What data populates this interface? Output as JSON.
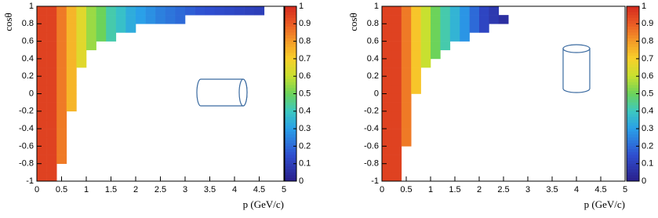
{
  "chart_data": [
    {
      "type": "heatmap",
      "xlabel": "p (GeV/c)",
      "ylabel": "cosθ",
      "colormap": "rainbow",
      "xlim": [
        0,
        5
      ],
      "ylim": [
        -1,
        1
      ],
      "zlim": [
        0,
        1
      ],
      "xticks": [
        0,
        0.5,
        1,
        1.5,
        2,
        2.5,
        3,
        3.5,
        4,
        4.5,
        5
      ],
      "yticks": [
        -1,
        -0.8,
        -0.6,
        -0.4,
        -0.2,
        0,
        0.2,
        0.4,
        0.6,
        0.8,
        1
      ],
      "zticks": [
        0,
        0.1,
        0.2,
        0.3,
        0.4,
        0.5,
        0.6,
        0.7,
        0.8,
        0.9,
        1
      ],
      "x_bins": [
        0,
        0.2,
        0.4,
        0.6,
        0.8,
        1,
        1.2,
        1.4,
        1.6,
        1.8,
        2,
        2.2,
        2.4,
        2.6,
        2.8,
        3,
        3.2,
        3.4,
        3.6,
        3.8,
        4,
        4.2,
        4.4,
        4.6,
        4.8,
        5
      ],
      "y_bins": [
        -1,
        -0.9,
        -0.8,
        -0.7,
        -0.6,
        -0.5,
        -0.4,
        -0.3,
        -0.2,
        -0.1,
        0,
        0.1,
        0.2,
        0.3,
        0.4,
        0.5,
        0.6,
        0.7,
        0.8,
        0.9,
        1
      ],
      "z": [
        [
          0.95,
          0.95,
          null,
          null,
          null,
          null,
          null,
          null,
          null,
          null,
          null,
          null,
          null,
          null,
          null,
          null,
          null,
          null,
          null,
          null,
          null,
          null,
          null,
          null,
          null
        ],
        [
          0.95,
          0.95,
          null,
          null,
          null,
          null,
          null,
          null,
          null,
          null,
          null,
          null,
          null,
          null,
          null,
          null,
          null,
          null,
          null,
          null,
          null,
          null,
          null,
          null,
          null
        ],
        [
          0.95,
          0.95,
          0.85,
          null,
          null,
          null,
          null,
          null,
          null,
          null,
          null,
          null,
          null,
          null,
          null,
          null,
          null,
          null,
          null,
          null,
          null,
          null,
          null,
          null,
          null
        ],
        [
          0.95,
          0.95,
          0.85,
          null,
          null,
          null,
          null,
          null,
          null,
          null,
          null,
          null,
          null,
          null,
          null,
          null,
          null,
          null,
          null,
          null,
          null,
          null,
          null,
          null,
          null
        ],
        [
          0.95,
          0.95,
          0.85,
          null,
          null,
          null,
          null,
          null,
          null,
          null,
          null,
          null,
          null,
          null,
          null,
          null,
          null,
          null,
          null,
          null,
          null,
          null,
          null,
          null,
          null
        ],
        [
          0.95,
          0.95,
          0.85,
          null,
          null,
          null,
          null,
          null,
          null,
          null,
          null,
          null,
          null,
          null,
          null,
          null,
          null,
          null,
          null,
          null,
          null,
          null,
          null,
          null,
          null
        ],
        [
          0.95,
          0.95,
          0.85,
          null,
          null,
          null,
          null,
          null,
          null,
          null,
          null,
          null,
          null,
          null,
          null,
          null,
          null,
          null,
          null,
          null,
          null,
          null,
          null,
          null,
          null
        ],
        [
          0.95,
          0.95,
          0.85,
          null,
          null,
          null,
          null,
          null,
          null,
          null,
          null,
          null,
          null,
          null,
          null,
          null,
          null,
          null,
          null,
          null,
          null,
          null,
          null,
          null,
          null
        ],
        [
          0.95,
          0.95,
          0.85,
          0.75,
          null,
          null,
          null,
          null,
          null,
          null,
          null,
          null,
          null,
          null,
          null,
          null,
          null,
          null,
          null,
          null,
          null,
          null,
          null,
          null,
          null
        ],
        [
          0.95,
          0.95,
          0.85,
          0.75,
          null,
          null,
          null,
          null,
          null,
          null,
          null,
          null,
          null,
          null,
          null,
          null,
          null,
          null,
          null,
          null,
          null,
          null,
          null,
          null,
          null
        ],
        [
          0.95,
          0.95,
          0.85,
          0.75,
          null,
          null,
          null,
          null,
          null,
          null,
          null,
          null,
          null,
          null,
          null,
          null,
          null,
          null,
          null,
          null,
          null,
          null,
          null,
          null,
          null
        ],
        [
          0.95,
          0.95,
          0.85,
          0.75,
          null,
          null,
          null,
          null,
          null,
          null,
          null,
          null,
          null,
          null,
          null,
          null,
          null,
          null,
          null,
          null,
          null,
          null,
          null,
          null,
          null
        ],
        [
          0.95,
          0.95,
          0.85,
          0.75,
          null,
          null,
          null,
          null,
          null,
          null,
          null,
          null,
          null,
          null,
          null,
          null,
          null,
          null,
          null,
          null,
          null,
          null,
          null,
          null,
          null
        ],
        [
          0.95,
          0.95,
          0.85,
          0.75,
          0.65,
          null,
          null,
          null,
          null,
          null,
          null,
          null,
          null,
          null,
          null,
          null,
          null,
          null,
          null,
          null,
          null,
          null,
          null,
          null,
          null
        ],
        [
          0.95,
          0.95,
          0.85,
          0.75,
          0.65,
          null,
          null,
          null,
          null,
          null,
          null,
          null,
          null,
          null,
          null,
          null,
          null,
          null,
          null,
          null,
          null,
          null,
          null,
          null,
          null
        ],
        [
          0.95,
          0.95,
          0.85,
          0.75,
          0.65,
          0.55,
          null,
          null,
          null,
          null,
          null,
          null,
          null,
          null,
          null,
          null,
          null,
          null,
          null,
          null,
          null,
          null,
          null,
          null,
          null
        ],
        [
          0.95,
          0.95,
          0.85,
          0.75,
          0.65,
          0.55,
          0.5,
          0.42,
          null,
          null,
          null,
          null,
          null,
          null,
          null,
          null,
          null,
          null,
          null,
          null,
          null,
          null,
          null,
          null,
          null
        ],
        [
          0.95,
          0.95,
          0.85,
          0.75,
          0.65,
          0.55,
          0.5,
          0.42,
          0.38,
          0.33,
          null,
          null,
          null,
          null,
          null,
          null,
          null,
          null,
          null,
          null,
          null,
          null,
          null,
          null,
          null
        ],
        [
          0.95,
          0.95,
          0.85,
          0.75,
          0.65,
          0.55,
          0.5,
          0.42,
          0.38,
          0.33,
          0.3,
          0.27,
          0.24,
          0.22,
          0.2,
          null,
          null,
          null,
          null,
          null,
          null,
          null,
          null,
          null,
          null
        ],
        [
          0.95,
          0.95,
          0.85,
          0.75,
          0.65,
          0.55,
          0.5,
          0.42,
          0.38,
          0.33,
          0.3,
          0.27,
          0.24,
          0.22,
          0.2,
          0.18,
          0.16,
          0.15,
          0.14,
          0.13,
          0.12,
          0.11,
          0.1,
          null,
          null
        ]
      ]
    },
    {
      "type": "heatmap",
      "xlabel": "p (GeV/c)",
      "ylabel": "cosθ",
      "colormap": "rainbow",
      "xlim": [
        0,
        5
      ],
      "ylim": [
        -1,
        1
      ],
      "zlim": [
        0,
        1
      ],
      "xticks": [
        0,
        0.5,
        1,
        1.5,
        2,
        2.5,
        3,
        3.5,
        4,
        4.5,
        5
      ],
      "yticks": [
        -1,
        -0.8,
        -0.6,
        -0.4,
        -0.2,
        0,
        0.2,
        0.4,
        0.6,
        0.8,
        1
      ],
      "zticks": [
        0,
        0.1,
        0.2,
        0.3,
        0.4,
        0.5,
        0.6,
        0.7,
        0.8,
        0.9,
        1
      ],
      "x_bins": [
        0,
        0.2,
        0.4,
        0.6,
        0.8,
        1,
        1.2,
        1.4,
        1.6,
        1.8,
        2,
        2.2,
        2.4,
        2.6,
        2.8,
        3,
        3.2,
        3.4,
        3.6,
        3.8,
        4,
        4.2,
        4.4,
        4.6,
        4.8,
        5
      ],
      "y_bins": [
        -1,
        -0.9,
        -0.8,
        -0.7,
        -0.6,
        -0.5,
        -0.4,
        -0.3,
        -0.2,
        -0.1,
        0,
        0.1,
        0.2,
        0.3,
        0.4,
        0.5,
        0.6,
        0.7,
        0.8,
        0.9,
        1
      ],
      "z": [
        [
          0.95,
          0.95,
          null,
          null,
          null,
          null,
          null,
          null,
          null,
          null,
          null,
          null,
          null,
          null,
          null,
          null,
          null,
          null,
          null,
          null,
          null,
          null,
          null,
          null,
          null
        ],
        [
          0.95,
          0.95,
          null,
          null,
          null,
          null,
          null,
          null,
          null,
          null,
          null,
          null,
          null,
          null,
          null,
          null,
          null,
          null,
          null,
          null,
          null,
          null,
          null,
          null,
          null
        ],
        [
          0.95,
          0.95,
          null,
          null,
          null,
          null,
          null,
          null,
          null,
          null,
          null,
          null,
          null,
          null,
          null,
          null,
          null,
          null,
          null,
          null,
          null,
          null,
          null,
          null,
          null
        ],
        [
          0.95,
          0.95,
          null,
          null,
          null,
          null,
          null,
          null,
          null,
          null,
          null,
          null,
          null,
          null,
          null,
          null,
          null,
          null,
          null,
          null,
          null,
          null,
          null,
          null,
          null
        ],
        [
          0.95,
          0.95,
          0.85,
          null,
          null,
          null,
          null,
          null,
          null,
          null,
          null,
          null,
          null,
          null,
          null,
          null,
          null,
          null,
          null,
          null,
          null,
          null,
          null,
          null,
          null
        ],
        [
          0.95,
          0.95,
          0.85,
          null,
          null,
          null,
          null,
          null,
          null,
          null,
          null,
          null,
          null,
          null,
          null,
          null,
          null,
          null,
          null,
          null,
          null,
          null,
          null,
          null,
          null
        ],
        [
          0.95,
          0.95,
          0.85,
          null,
          null,
          null,
          null,
          null,
          null,
          null,
          null,
          null,
          null,
          null,
          null,
          null,
          null,
          null,
          null,
          null,
          null,
          null,
          null,
          null,
          null
        ],
        [
          0.95,
          0.95,
          0.85,
          null,
          null,
          null,
          null,
          null,
          null,
          null,
          null,
          null,
          null,
          null,
          null,
          null,
          null,
          null,
          null,
          null,
          null,
          null,
          null,
          null,
          null
        ],
        [
          0.95,
          0.95,
          0.85,
          null,
          null,
          null,
          null,
          null,
          null,
          null,
          null,
          null,
          null,
          null,
          null,
          null,
          null,
          null,
          null,
          null,
          null,
          null,
          null,
          null,
          null
        ],
        [
          0.95,
          0.95,
          0.85,
          null,
          null,
          null,
          null,
          null,
          null,
          null,
          null,
          null,
          null,
          null,
          null,
          null,
          null,
          null,
          null,
          null,
          null,
          null,
          null,
          null,
          null
        ],
        [
          0.95,
          0.95,
          0.85,
          0.72,
          null,
          null,
          null,
          null,
          null,
          null,
          null,
          null,
          null,
          null,
          null,
          null,
          null,
          null,
          null,
          null,
          null,
          null,
          null,
          null,
          null
        ],
        [
          0.95,
          0.95,
          0.85,
          0.72,
          null,
          null,
          null,
          null,
          null,
          null,
          null,
          null,
          null,
          null,
          null,
          null,
          null,
          null,
          null,
          null,
          null,
          null,
          null,
          null,
          null
        ],
        [
          0.95,
          0.95,
          0.85,
          0.72,
          null,
          null,
          null,
          null,
          null,
          null,
          null,
          null,
          null,
          null,
          null,
          null,
          null,
          null,
          null,
          null,
          null,
          null,
          null,
          null,
          null
        ],
        [
          0.95,
          0.95,
          0.85,
          0.72,
          0.6,
          null,
          null,
          null,
          null,
          null,
          null,
          null,
          null,
          null,
          null,
          null,
          null,
          null,
          null,
          null,
          null,
          null,
          null,
          null,
          null
        ],
        [
          0.95,
          0.95,
          0.85,
          0.72,
          0.6,
          0.5,
          null,
          null,
          null,
          null,
          null,
          null,
          null,
          null,
          null,
          null,
          null,
          null,
          null,
          null,
          null,
          null,
          null,
          null,
          null
        ],
        [
          0.95,
          0.95,
          0.85,
          0.72,
          0.6,
          0.5,
          0.42,
          null,
          null,
          null,
          null,
          null,
          null,
          null,
          null,
          null,
          null,
          null,
          null,
          null,
          null,
          null,
          null,
          null,
          null
        ],
        [
          0.95,
          0.95,
          0.85,
          0.72,
          0.6,
          0.5,
          0.42,
          0.35,
          0.28,
          null,
          null,
          null,
          null,
          null,
          null,
          null,
          null,
          null,
          null,
          null,
          null,
          null,
          null,
          null,
          null
        ],
        [
          0.95,
          0.95,
          0.85,
          0.72,
          0.6,
          0.5,
          0.42,
          0.35,
          0.28,
          0.2,
          0.12,
          null,
          null,
          null,
          null,
          null,
          null,
          null,
          null,
          null,
          null,
          null,
          null,
          null,
          null
        ],
        [
          0.95,
          0.95,
          0.85,
          0.72,
          0.6,
          0.5,
          0.42,
          0.35,
          0.28,
          0.2,
          0.12,
          0.08,
          0.05,
          null,
          null,
          null,
          null,
          null,
          null,
          null,
          null,
          null,
          null,
          null,
          null
        ],
        [
          0.95,
          0.95,
          0.85,
          0.72,
          0.6,
          0.5,
          0.42,
          0.35,
          0.28,
          0.2,
          0.12,
          0.08,
          null,
          null,
          null,
          null,
          null,
          null,
          null,
          null,
          null,
          null,
          null,
          null,
          null
        ]
      ]
    }
  ]
}
